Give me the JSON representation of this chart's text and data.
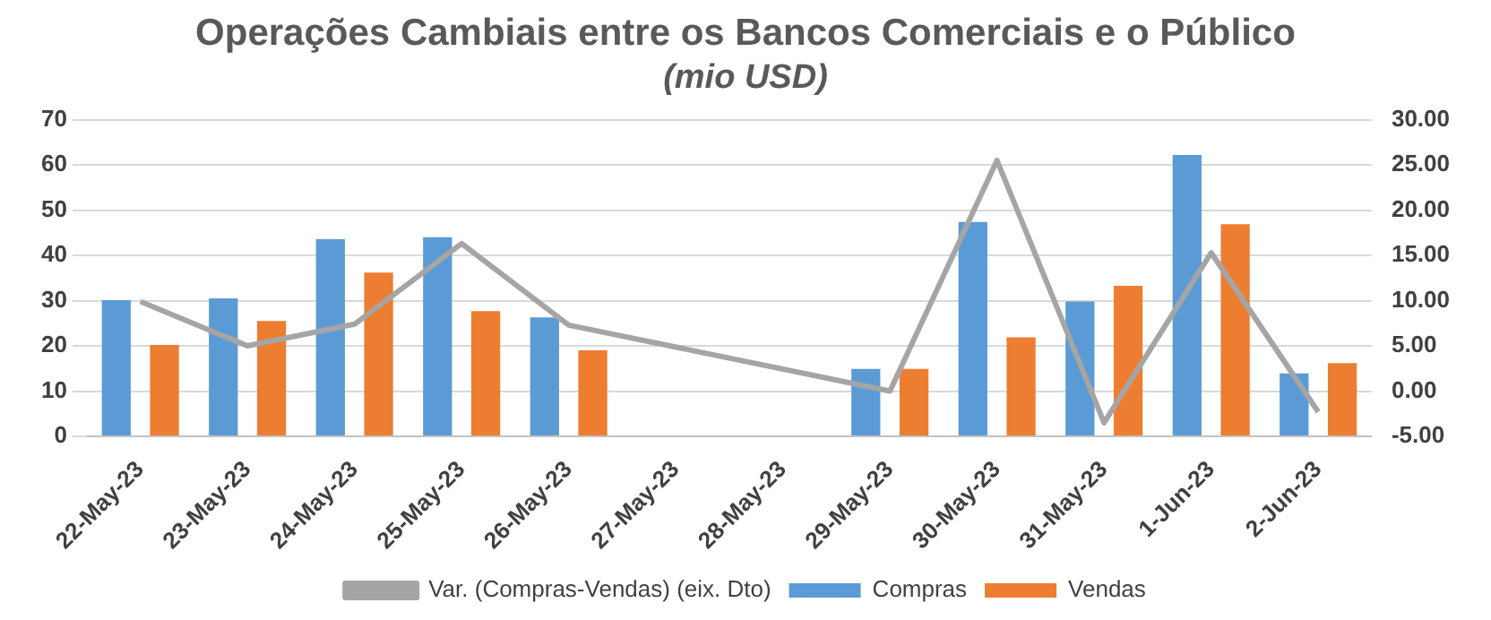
{
  "chart_data": {
    "type": "bar",
    "title": "Operações Cambiais entre os Bancos Comerciais e o Público",
    "subtitle": "(mio USD)",
    "categories": [
      "22-May-23",
      "23-May-23",
      "24-May-23",
      "25-May-23",
      "26-May-23",
      "27-May-23",
      "28-May-23",
      "29-May-23",
      "30-May-23",
      "31-May-23",
      "1-Jun-23",
      "2-Jun-23"
    ],
    "series": [
      {
        "name": "Compras",
        "color": "#5b9bd5",
        "values": [
          30.1,
          30.5,
          43.6,
          44.0,
          26.3,
          null,
          null,
          14.9,
          47.4,
          29.8,
          62.2,
          13.9
        ]
      },
      {
        "name": "Vendas",
        "color": "#ed7d31",
        "values": [
          20.2,
          25.5,
          36.2,
          27.7,
          19.0,
          null,
          null,
          14.9,
          21.9,
          33.3,
          46.9,
          16.2
        ]
      },
      {
        "name": "Var. (Compras-Vendas) (eix. Dto)",
        "type": "line",
        "axis": "y2",
        "color": "#a5a5a5",
        "values": [
          9.9,
          5.0,
          7.4,
          16.3,
          7.3,
          null,
          null,
          0.0,
          25.5,
          -3.5,
          15.3,
          -2.3
        ]
      }
    ],
    "ylim": [
      0,
      70
    ],
    "yticks": [
      0,
      10,
      20,
      30,
      40,
      50,
      60,
      70
    ],
    "y2lim": [
      -5,
      30
    ],
    "y2ticks": [
      {
        "value": -5,
        "label": "-5.00"
      },
      {
        "value": 0,
        "label": "0.00"
      },
      {
        "value": 5,
        "label": "5.00"
      },
      {
        "value": 10,
        "label": "10.00"
      },
      {
        "value": 15,
        "label": "15.00"
      },
      {
        "value": 20,
        "label": "20.00"
      },
      {
        "value": 25,
        "label": "25.00"
      },
      {
        "value": 30,
        "label": "30.00"
      }
    ],
    "grid": "y",
    "legend": "bottom",
    "marker": "none"
  }
}
